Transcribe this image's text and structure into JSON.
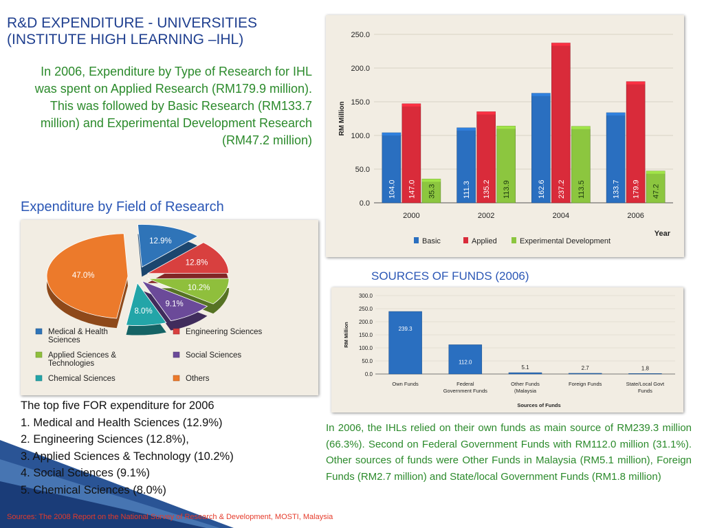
{
  "title": {
    "line1": "R&D EXPENDITURE  - UNIVERSITIES",
    "line2": "(INSTITUTE HIGH LEARNING –IHL)"
  },
  "intro_text": "In 2006, Expenditure by Type of Research for IHL was spent on Applied Research (RM179.9 million). This was followed by Basic Research (RM133.7 million) and Experimental Development Research (RM47.2 million)",
  "field_heading": "Expenditure by Field of Research",
  "sources_heading": "SOURCES OF FUNDS (2006)",
  "top_five": {
    "heading": "The top five FOR expenditure for 2006",
    "items": [
      "1. Medical and Health Sciences (12.9%)",
      "2. Engineering Sciences (12.8%),",
      "3. Applied Sciences & Technology (10.2%)",
      "4. Social Sciences (9.1%)",
      "5. Chemical Sciences (8.0%)"
    ]
  },
  "funds_text": "In 2006, the IHLs relied on their own funds as main source of RM239.3 million (66.3%). Second on Federal Government Funds with RM112.0 million (31.1%). Other sources of funds were Other Funds in Malaysia (RM5.1 million), Foreign Funds (RM2.7 million) and State/local Government Funds (RM1.8 million)",
  "source_note": "Sources: The 2008 Report on the National Survey of Research & Development, MOSTI, Malaysia",
  "chart_data": [
    {
      "type": "bar",
      "categories": [
        "2000",
        "2002",
        "2004",
        "2006"
      ],
      "series": [
        {
          "name": "Basic",
          "color": "#2a6fc0",
          "values": [
            104.0,
            111.3,
            162.6,
            133.7
          ],
          "labels": [
            "104.0",
            "111.3",
            "162.6",
            "133.7"
          ]
        },
        {
          "name": "Applied",
          "color": "#d92b3a",
          "values": [
            147.0,
            135.2,
            237.2,
            179.9
          ],
          "labels": [
            "147.0",
            "135.2",
            "237.2",
            "179.9"
          ]
        },
        {
          "name": "Experimental Development",
          "color": "#8cc63f",
          "values": [
            35.3,
            113.9,
            113.5,
            47.2
          ],
          "labels": [
            "35.3",
            "113.9",
            "113.5",
            "47.2"
          ]
        }
      ],
      "ylabel": "RM Million",
      "xlabel": "Year",
      "ylim": [
        0,
        250
      ],
      "yticks": [
        "0.0",
        "50.0",
        "100.0",
        "150.0",
        "200.0",
        "250.0"
      ],
      "legend": "bottom"
    },
    {
      "type": "pie",
      "labels": [
        "Medical & Health Sciences",
        "Engineering Sciences",
        "Applied Sciences & Technologies",
        "Social Sciences",
        "Chemical Sciences",
        "Others"
      ],
      "values": [
        12.9,
        12.8,
        10.2,
        9.1,
        8.0,
        47.0
      ],
      "value_labels": [
        "12.9%",
        "12.8%",
        "10.2%",
        "9.1%",
        "8.0%",
        "47.0%"
      ],
      "colors": [
        "#2f74b8",
        "#d8403f",
        "#8fbf3c",
        "#6b4a99",
        "#23a5a8",
        "#ec7a2b"
      ],
      "legend_lines": [
        [
          "Medical & Health",
          "Sciences"
        ],
        [
          "Engineering Sciences"
        ],
        [
          "Applied Sciences &",
          "Technologies"
        ],
        [
          "Social Sciences"
        ],
        [
          "Chemical Sciences"
        ],
        [
          "Others"
        ]
      ],
      "legend": "bottom"
    },
    {
      "type": "bar",
      "categories": [
        "Own Funds",
        "Federal Government Funds",
        "Other Funds (Malaysia",
        "Foreign Funds",
        "State/Local Govt Funds"
      ],
      "category_lines": [
        [
          "Own Funds"
        ],
        [
          "Federal",
          "Government Funds"
        ],
        [
          "Other Funds",
          "(Malaysia"
        ],
        [
          "Foreign Funds"
        ],
        [
          "State/Local Govt",
          "Funds"
        ]
      ],
      "values": [
        239.3,
        112.0,
        5.1,
        2.7,
        1.8
      ],
      "labels": [
        "239.3",
        "112.0",
        "5.1",
        "2.7",
        "1.8"
      ],
      "color": "#2a6fc0",
      "ylabel": "RM Million",
      "xlabel": "Sources of Funds",
      "ylim": [
        0,
        300
      ],
      "yticks": [
        "0.0",
        "50.0",
        "100.0",
        "150.0",
        "200.0",
        "250.0",
        "300.0"
      ]
    }
  ]
}
